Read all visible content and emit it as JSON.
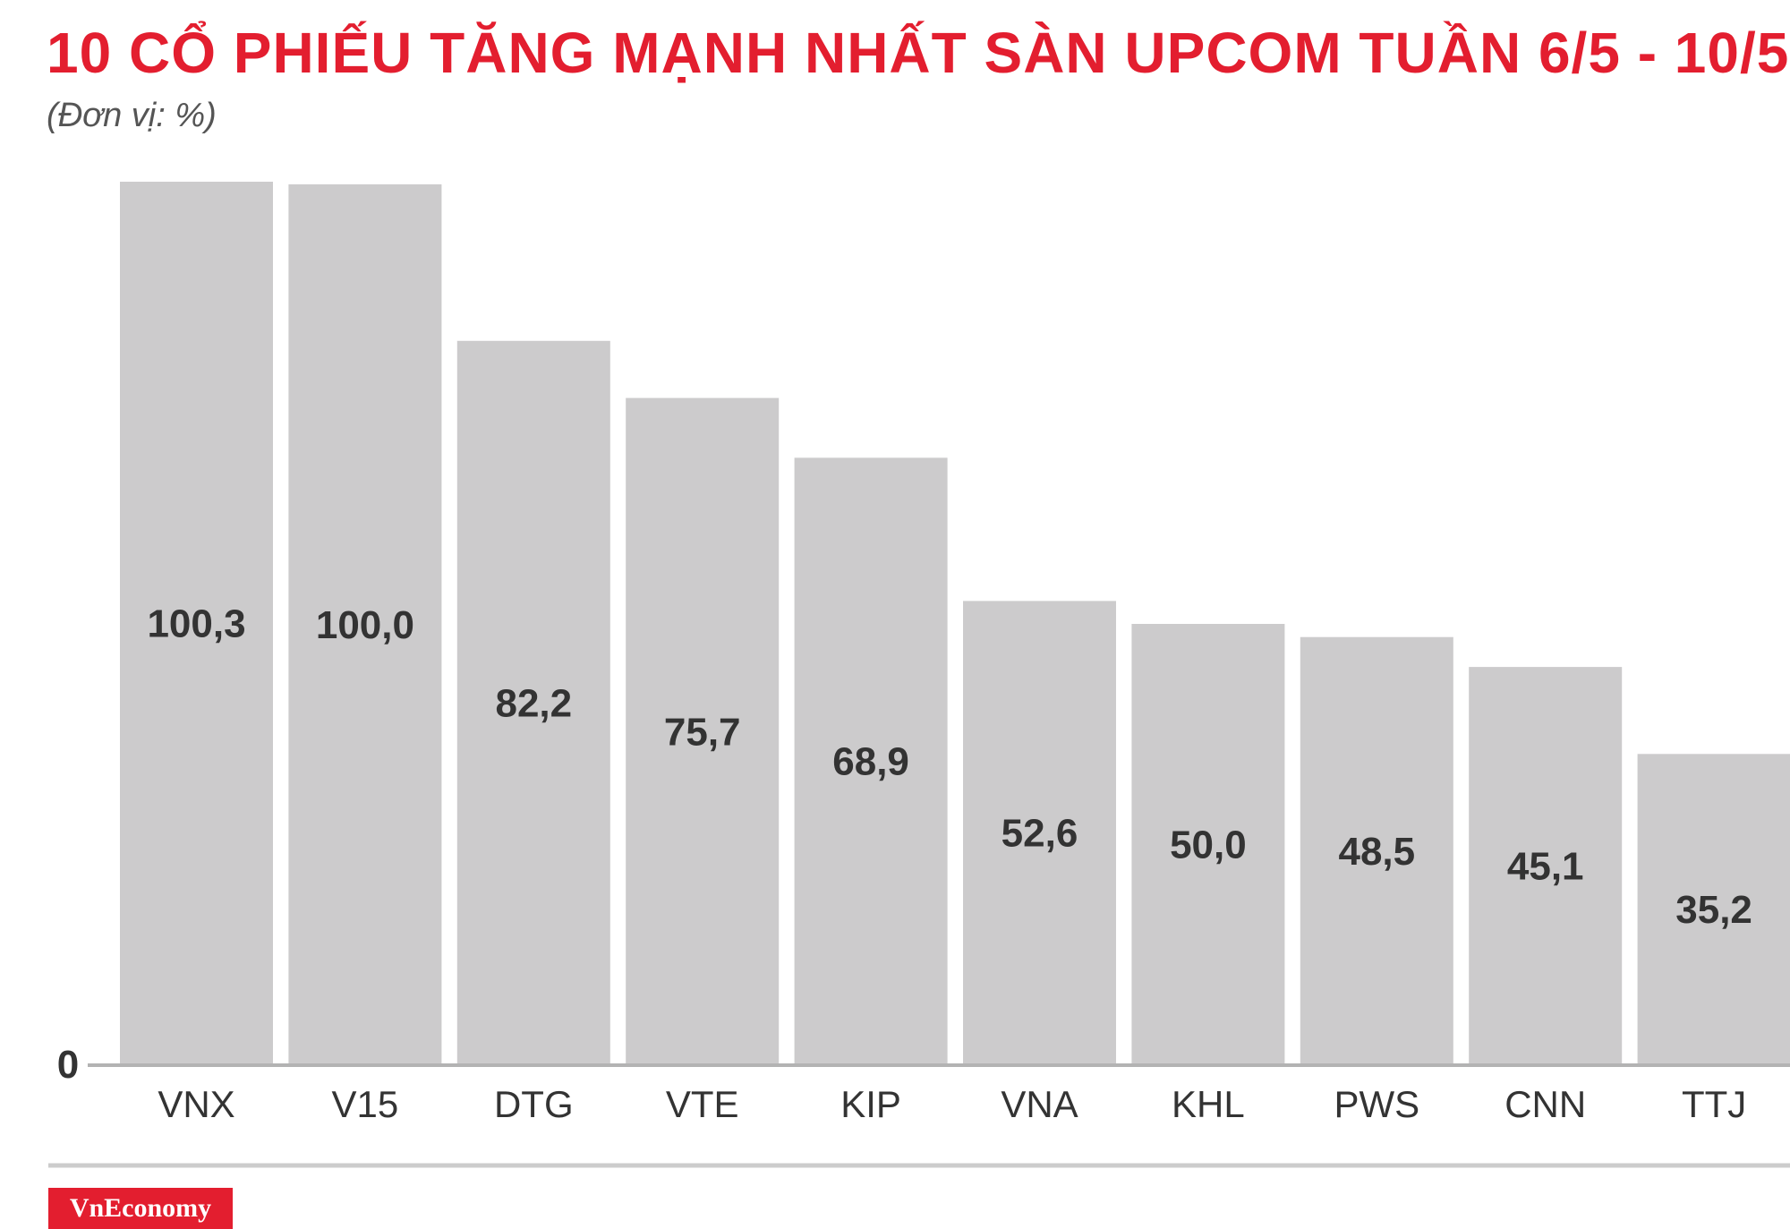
{
  "title": "10 CỔ PHIẾU TĂNG MẠNH NHẤT SÀN UPCOM TUẦN 6/5 - 10/5",
  "subtitle": "(Đơn vị: %)",
  "brand": "VnEconomy",
  "colors": {
    "title": "#e31e2f",
    "bar": "#cccbcc",
    "axis": "#b3b3b3",
    "label": "#333333",
    "brand_bg": "#e31e2f"
  },
  "chart_data": {
    "type": "bar",
    "categories": [
      "VNX",
      "V15",
      "DTG",
      "VTE",
      "KIP",
      "VNA",
      "KHL",
      "PWS",
      "CNN",
      "TTJ"
    ],
    "values": [
      100.3,
      100.0,
      82.2,
      75.7,
      68.9,
      52.6,
      50.0,
      48.5,
      45.1,
      35.2
    ],
    "value_labels": [
      "100,3",
      "100,0",
      "82,2",
      "75,7",
      "68,9",
      "52,6",
      "50,0",
      "48,5",
      "45,1",
      "35,2"
    ],
    "y_tick_label": "0",
    "ylim": [
      0,
      100.3
    ],
    "grid": false,
    "legend": "none"
  }
}
